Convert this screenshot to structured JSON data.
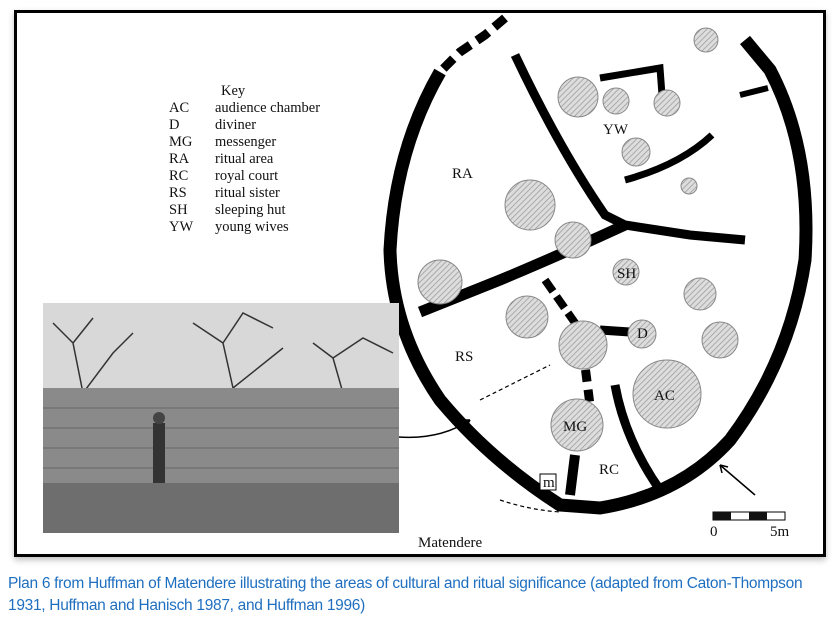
{
  "figure": {
    "key": {
      "title": "Key",
      "entries": [
        {
          "code": "AC",
          "label": "audience chamber"
        },
        {
          "code": "D",
          "label": "diviner"
        },
        {
          "code": "MG",
          "label": "messenger"
        },
        {
          "code": "RA",
          "label": "ritual area"
        },
        {
          "code": "RC",
          "label": "royal court"
        },
        {
          "code": "RS",
          "label": "ritual sister"
        },
        {
          "code": "SH",
          "label": "sleeping hut"
        },
        {
          "code": "YW",
          "label": "young wives"
        }
      ]
    },
    "plan_labels": {
      "RA": "RA",
      "YW": "YW",
      "SH": "SH",
      "RS": "RS",
      "D": "D",
      "AC": "AC",
      "MG": "MG",
      "RC": "RC",
      "m": "m"
    },
    "site_name": "Matendere",
    "scale": {
      "start": "0",
      "end": "5m"
    },
    "north_arrow": "arrow-icon"
  },
  "caption": "Plan 6 from Huffman of Matendere illustrating the areas of cultural and ritual significance (adapted from Caton-Thompson 1931, Huffman and Hanisch 1987, and Huffman 1996)",
  "colors": {
    "caption": "#1f6fc0",
    "wall": "#000000",
    "hut_fill": "#cccccc"
  }
}
